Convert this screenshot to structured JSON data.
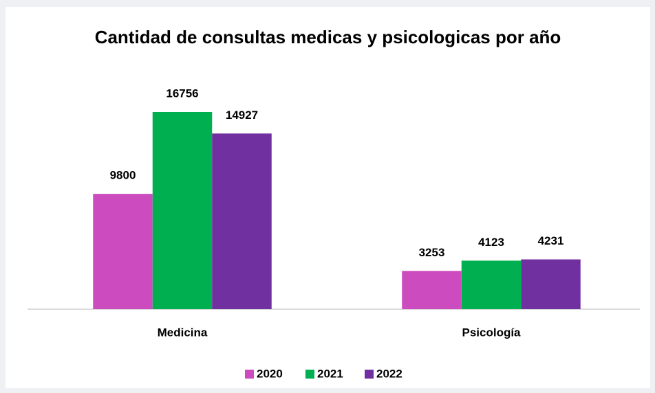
{
  "chart_data": {
    "type": "bar",
    "title": "Cantidad de consultas medicas y psicologicas por año",
    "categories": [
      "Medicina",
      "Psicología"
    ],
    "series": [
      {
        "name": "2020",
        "color": "#cc4cc0",
        "values": [
          9800,
          3253
        ]
      },
      {
        "name": "2021",
        "color": "#00b050",
        "values": [
          16756,
          4123
        ]
      },
      {
        "name": "2022",
        "color": "#7030a0",
        "values": [
          14927,
          4231
        ]
      }
    ]
  }
}
